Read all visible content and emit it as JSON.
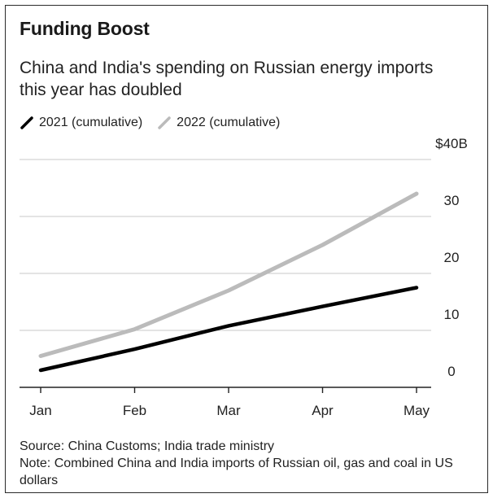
{
  "chart_data": {
    "type": "line",
    "title": "Funding Boost",
    "subtitle": "China and India's spending on Russian energy imports this year has doubled",
    "categories": [
      "Jan",
      "Feb",
      "Mar",
      "Apr",
      "May"
    ],
    "series": [
      {
        "name": "2021 (cumulative)",
        "color": "#000000",
        "values": [
          3,
          6.7,
          10.8,
          14.2,
          17.5
        ]
      },
      {
        "name": "2022 (cumulative)",
        "color": "#bbbbbb",
        "values": [
          5.5,
          10.2,
          17,
          25,
          34
        ]
      }
    ],
    "y_ticks": [
      {
        "value": 0,
        "label": "0"
      },
      {
        "value": 10,
        "label": "10"
      },
      {
        "value": 20,
        "label": "20"
      },
      {
        "value": 30,
        "label": "30"
      },
      {
        "value": 40,
        "label": "$40B"
      }
    ],
    "ylim": [
      0,
      40
    ],
    "grid": true,
    "xlabel": "",
    "ylabel": "",
    "legend_position": "top-left",
    "source": "Source: China Customs; India trade ministry",
    "note": "Note: Combined China and India imports of Russian oil, gas and coal in US dollars"
  }
}
